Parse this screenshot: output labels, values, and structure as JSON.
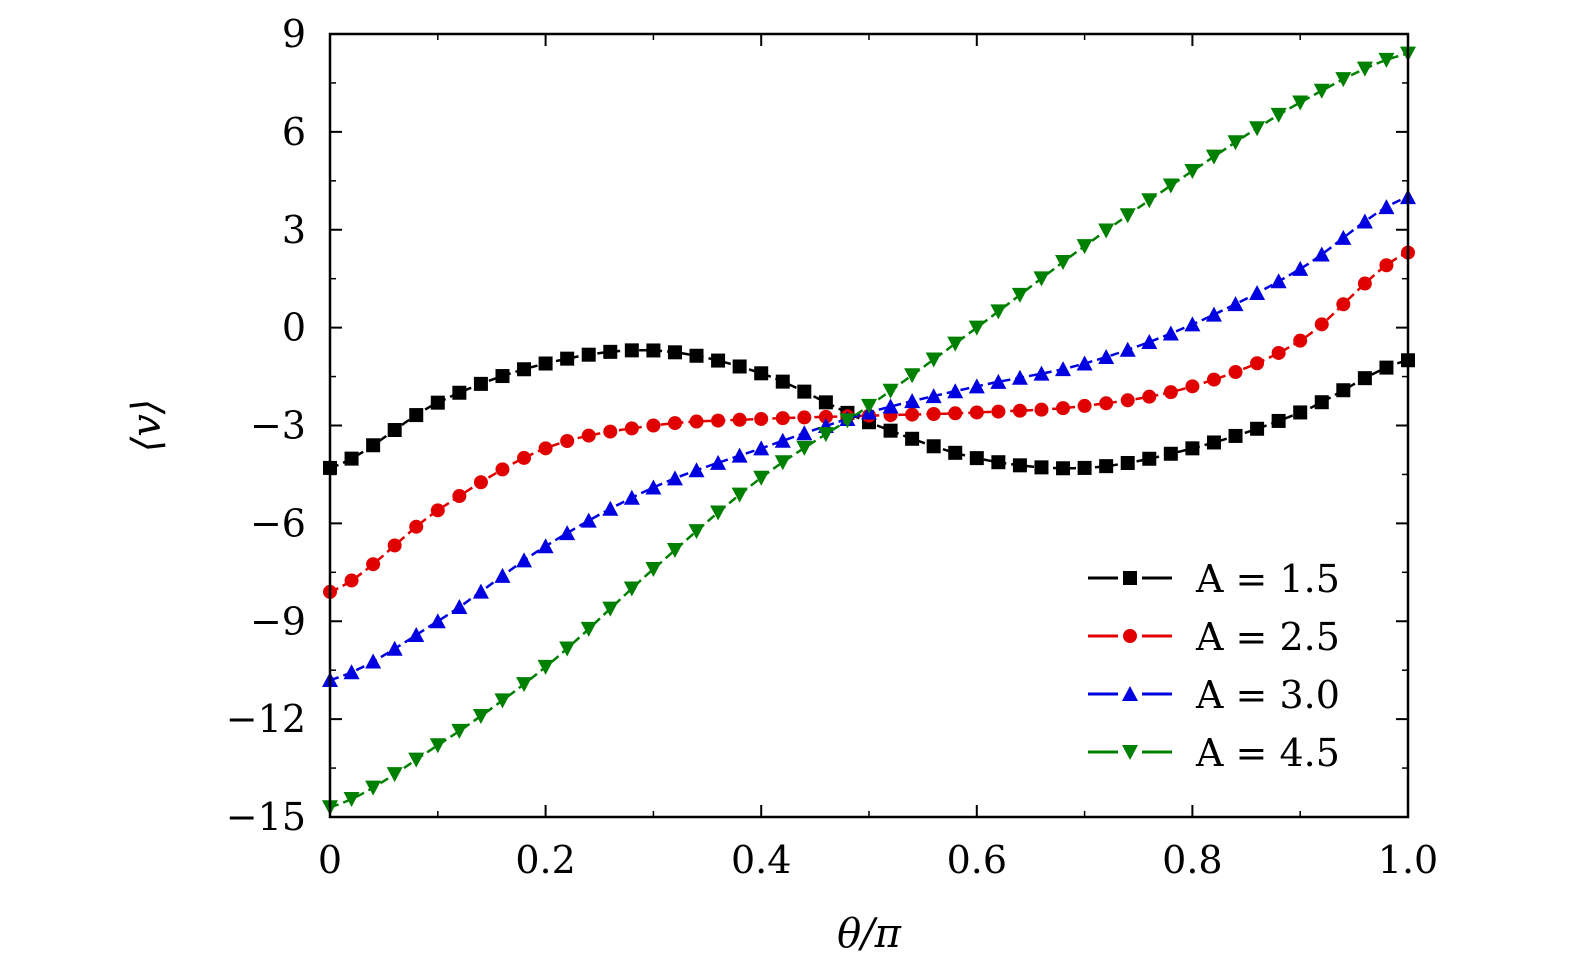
{
  "chart_data": {
    "type": "line",
    "title": "",
    "xlabel": "θ/π",
    "ylabel": "⟨v⟩",
    "xlim": [
      0,
      1.0
    ],
    "ylim": [
      -15,
      9
    ],
    "xticks": [
      0,
      0.2,
      0.4,
      0.6,
      0.8,
      1.0
    ],
    "xtick_labels": [
      "0",
      "0.2",
      "0.4",
      "0.6",
      "0.8",
      "1.0"
    ],
    "yticks": [
      -15,
      -12,
      -9,
      -6,
      -3,
      0,
      3,
      6,
      9
    ],
    "ytick_labels": [
      "−15",
      "−12",
      "−9",
      "−6",
      "−3",
      "0",
      "3",
      "6",
      "9"
    ],
    "grid": false,
    "legend_position": "lower-right",
    "x": [
      0,
      0.1,
      0.2,
      0.3,
      0.4,
      0.5,
      0.6,
      0.7,
      0.8,
      0.9,
      1.0
    ],
    "series": [
      {
        "name": "A = 1.5",
        "color": "#000000",
        "marker": "square",
        "values": [
          -4.3,
          -2.3,
          -1.1,
          -0.7,
          -1.4,
          -2.9,
          -4.0,
          -4.3,
          -3.7,
          -2.6,
          -1.0
        ]
      },
      {
        "name": "A = 2.5",
        "color": "#e00000",
        "marker": "circle",
        "values": [
          -8.1,
          -5.6,
          -3.7,
          -3.0,
          -2.8,
          -2.7,
          -2.6,
          -2.4,
          -1.8,
          -0.4,
          2.3
        ]
      },
      {
        "name": "A = 3.0",
        "color": "#0000e0",
        "marker": "triangle-up",
        "values": [
          -10.8,
          -9.0,
          -6.7,
          -4.9,
          -3.7,
          -2.6,
          -1.8,
          -1.1,
          0.1,
          1.8,
          4.0
        ]
      },
      {
        "name": "A = 4.5",
        "color": "#008000",
        "marker": "triangle-down",
        "values": [
          -14.7,
          -12.8,
          -10.4,
          -7.4,
          -4.6,
          -2.4,
          0.0,
          2.5,
          4.8,
          6.9,
          8.4
        ]
      }
    ],
    "marker_samples_per_series": 51
  }
}
